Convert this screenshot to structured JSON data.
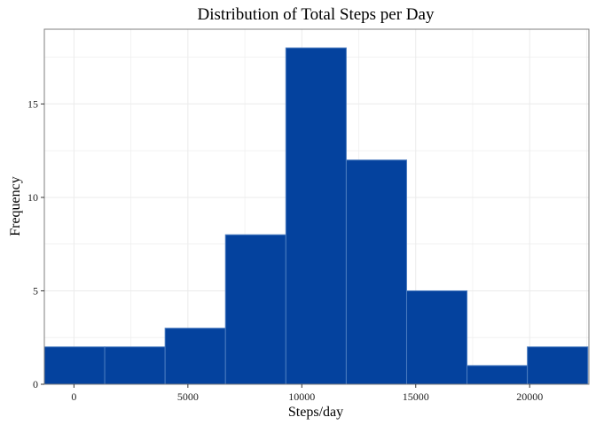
{
  "chart_data": {
    "type": "bar",
    "subtype": "histogram",
    "title": "Distribution of Total Steps per Day",
    "xlabel": "Steps/day",
    "ylabel": "Frequency",
    "xlim": [
      -1300,
      22600
    ],
    "ylim": [
      0,
      19
    ],
    "x_ticks": [
      0,
      5000,
      10000,
      15000,
      20000
    ],
    "y_ticks": [
      0,
      5,
      10,
      15
    ],
    "bins": [
      {
        "start": -1300,
        "end": 1350,
        "count": 2
      },
      {
        "start": 1350,
        "end": 4000,
        "count": 2
      },
      {
        "start": 4000,
        "end": 6650,
        "count": 3
      },
      {
        "start": 6650,
        "end": 9300,
        "count": 8
      },
      {
        "start": 9300,
        "end": 11950,
        "count": 18
      },
      {
        "start": 11950,
        "end": 14600,
        "count": 12
      },
      {
        "start": 14600,
        "end": 17250,
        "count": 5
      },
      {
        "start": 17250,
        "end": 19900,
        "count": 1
      },
      {
        "start": 19900,
        "end": 22550,
        "count": 2
      }
    ],
    "grid": true,
    "legend": "none",
    "colors": {
      "fill": "#04429E",
      "stroke": "#4B7CC0",
      "grid": "#EBEBEB",
      "panel_border": "#7F7F7F"
    }
  }
}
